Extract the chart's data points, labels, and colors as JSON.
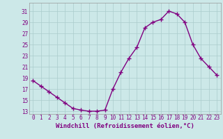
{
  "x": [
    0,
    1,
    2,
    3,
    4,
    5,
    6,
    7,
    8,
    9,
    10,
    11,
    12,
    13,
    14,
    15,
    16,
    17,
    18,
    19,
    20,
    21,
    22,
    23
  ],
  "y": [
    18.5,
    17.5,
    16.5,
    15.5,
    14.5,
    13.5,
    13.2,
    13.0,
    13.0,
    13.2,
    17.0,
    20.0,
    22.5,
    24.5,
    28.0,
    29.0,
    29.5,
    31.0,
    30.5,
    29.0,
    25.0,
    22.5,
    21.0,
    19.5
  ],
  "line_color": "#800080",
  "marker": "+",
  "markersize": 4,
  "linewidth": 1.0,
  "xlabel": "Windchill (Refroidissement éolien,°C)",
  "xlabel_fontsize": 6.5,
  "yticks": [
    13,
    15,
    17,
    19,
    21,
    23,
    25,
    27,
    29,
    31
  ],
  "xticks": [
    0,
    1,
    2,
    3,
    4,
    5,
    6,
    7,
    8,
    9,
    10,
    11,
    12,
    13,
    14,
    15,
    16,
    17,
    18,
    19,
    20,
    21,
    22,
    23
  ],
  "ylim": [
    12.5,
    32.5
  ],
  "xlim": [
    -0.5,
    23.5
  ],
  "background_color": "#cce8e8",
  "grid_color": "#aacccc",
  "tick_color": "#800080",
  "tick_labelsize": 5.5,
  "spine_color": "#999999"
}
